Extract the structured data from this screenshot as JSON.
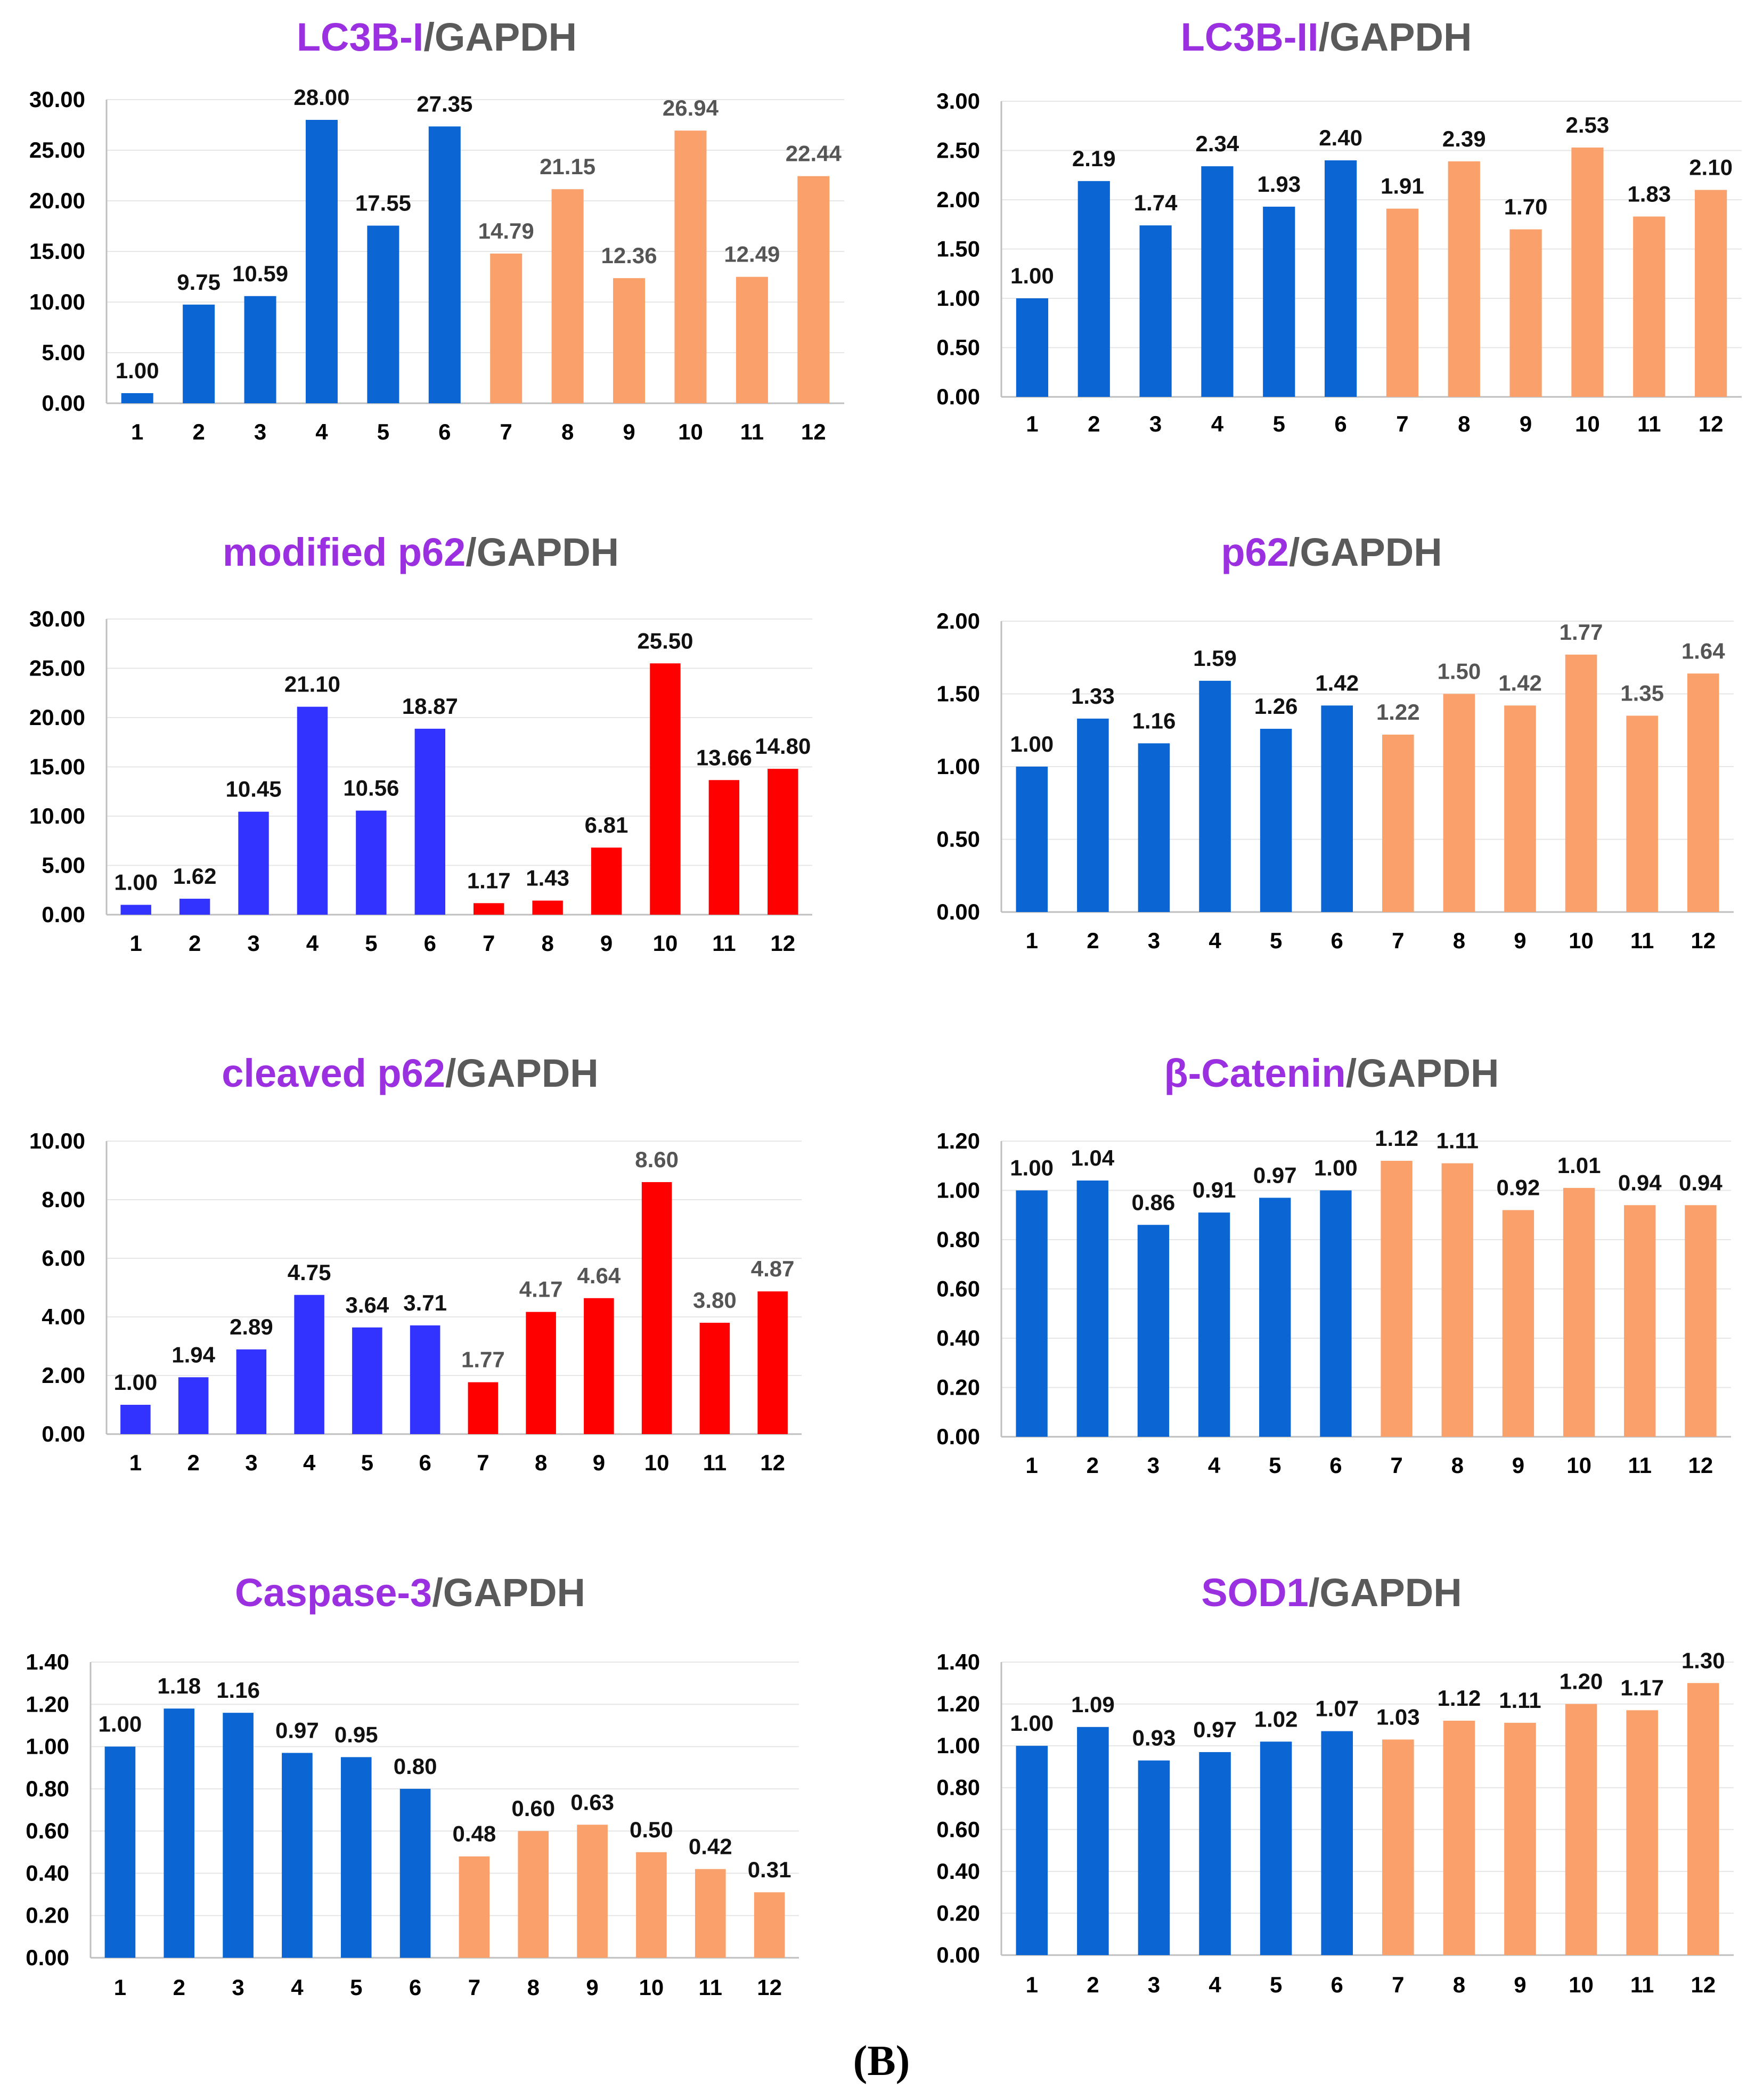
{
  "figure_label": "(B)",
  "colors": {
    "blue": "#0b66d4",
    "orange": "#f9a06b",
    "violet": "#3333ff",
    "red": "#ff0000",
    "title_protein": "#9b30e0",
    "title_ref": "#5a5a5a",
    "label_dark": "#111111",
    "label_grey": "#555555"
  },
  "chart_data": [
    {
      "type": "bar",
      "title_protein": "LC3B-I",
      "title_ref": "/GAPDH",
      "categories": [
        "1",
        "2",
        "3",
        "4",
        "5",
        "6",
        "7",
        "8",
        "9",
        "10",
        "11",
        "12"
      ],
      "values": [
        1.0,
        9.75,
        10.59,
        28.0,
        17.55,
        27.35,
        14.79,
        21.15,
        12.36,
        26.94,
        12.49,
        22.44
      ],
      "value_labels": [
        "1.00",
        "9.75",
        "10.59",
        "28.00",
        "17.55",
        "27.35",
        "14.79",
        "21.15",
        "12.36",
        "26.94",
        "12.49",
        "22.44"
      ],
      "bar_colors": [
        "blue",
        "blue",
        "blue",
        "blue",
        "blue",
        "blue",
        "orange",
        "orange",
        "orange",
        "orange",
        "orange",
        "orange"
      ],
      "ylim": [
        0,
        30
      ],
      "yticks": [
        "0.00",
        "5.00",
        "10.00",
        "15.00",
        "20.00",
        "25.00",
        "30.00"
      ],
      "grid": true
    },
    {
      "type": "bar",
      "title_protein": "LC3B-II",
      "title_ref": "/GAPDH",
      "categories": [
        "1",
        "2",
        "3",
        "4",
        "5",
        "6",
        "7",
        "8",
        "9",
        "10",
        "11",
        "12"
      ],
      "values": [
        1.0,
        2.19,
        1.74,
        2.34,
        1.93,
        2.4,
        1.91,
        2.39,
        1.7,
        2.53,
        1.83,
        2.1
      ],
      "value_labels": [
        "1.00",
        "2.19",
        "1.74",
        "2.34",
        "1.93",
        "2.40",
        "1.91",
        "2.39",
        "1.70",
        "2.53",
        "1.83",
        "2.10"
      ],
      "bar_colors": [
        "blue",
        "blue",
        "blue",
        "blue",
        "blue",
        "blue",
        "orange",
        "orange",
        "orange",
        "orange",
        "orange",
        "orange"
      ],
      "ylim": [
        0,
        3
      ],
      "yticks": [
        "0.00",
        "0.50",
        "1.00",
        "1.50",
        "2.00",
        "2.50",
        "3.00"
      ],
      "grid": true
    },
    {
      "type": "bar",
      "title_protein": "modified p62",
      "title_ref": "/GAPDH",
      "categories": [
        "1",
        "2",
        "3",
        "4",
        "5",
        "6",
        "7",
        "8",
        "9",
        "10",
        "11",
        "12"
      ],
      "values": [
        1.0,
        1.62,
        10.45,
        21.1,
        10.56,
        18.87,
        1.17,
        1.43,
        6.81,
        25.5,
        13.66,
        14.8
      ],
      "value_labels": [
        "1.00",
        "1.62",
        "10.45",
        "21.10",
        "10.56",
        "18.87",
        "1.17",
        "1.43",
        "6.81",
        "25.50",
        "13.66",
        "14.80"
      ],
      "bar_colors": [
        "violet",
        "violet",
        "violet",
        "violet",
        "violet",
        "violet",
        "red",
        "red",
        "red",
        "red",
        "red",
        "red"
      ],
      "ylim": [
        0,
        30
      ],
      "yticks": [
        "0.00",
        "5.00",
        "10.00",
        "15.00",
        "20.00",
        "25.00",
        "30.00"
      ],
      "grid": true
    },
    {
      "type": "bar",
      "title_protein": "p62",
      "title_ref": "/GAPDH",
      "categories": [
        "1",
        "2",
        "3",
        "4",
        "5",
        "6",
        "7",
        "8",
        "9",
        "10",
        "11",
        "12"
      ],
      "values": [
        1.0,
        1.33,
        1.16,
        1.59,
        1.26,
        1.42,
        1.22,
        1.5,
        1.42,
        1.77,
        1.35,
        1.64
      ],
      "value_labels": [
        "1.00",
        "1.33",
        "1.16",
        "1.59",
        "1.26",
        "1.42",
        "1.22",
        "1.50",
        "1.42",
        "1.77",
        "1.35",
        "1.64"
      ],
      "bar_colors": [
        "blue",
        "blue",
        "blue",
        "blue",
        "blue",
        "blue",
        "orange",
        "orange",
        "orange",
        "orange",
        "orange",
        "orange"
      ],
      "ylim": [
        0,
        2
      ],
      "yticks": [
        "0.00",
        "0.50",
        "1.00",
        "1.50",
        "2.00"
      ],
      "grid": true
    },
    {
      "type": "bar",
      "title_protein": "cleaved p62",
      "title_ref": "/GAPDH",
      "categories": [
        "1",
        "2",
        "3",
        "4",
        "5",
        "6",
        "7",
        "8",
        "9",
        "10",
        "11",
        "12"
      ],
      "values": [
        1.0,
        1.94,
        2.89,
        4.75,
        3.64,
        3.71,
        1.77,
        4.17,
        4.64,
        8.6,
        3.8,
        4.87
      ],
      "value_labels": [
        "1.00",
        "1.94",
        "2.89",
        "4.75",
        "3.64",
        "3.71",
        "1.77",
        "4.17",
        "4.64",
        "8.60",
        "3.80",
        "4.87"
      ],
      "bar_colors": [
        "violet",
        "violet",
        "violet",
        "violet",
        "violet",
        "violet",
        "red",
        "red",
        "red",
        "red",
        "red",
        "red"
      ],
      "ylim": [
        0,
        10
      ],
      "yticks": [
        "0.00",
        "2.00",
        "4.00",
        "6.00",
        "8.00",
        "10.00"
      ],
      "grid": true
    },
    {
      "type": "bar",
      "title_protein": "β-Catenin",
      "title_ref": "/GAPDH",
      "categories": [
        "1",
        "2",
        "3",
        "4",
        "5",
        "6",
        "7",
        "8",
        "9",
        "10",
        "11",
        "12"
      ],
      "values": [
        1.0,
        1.04,
        0.86,
        0.91,
        0.97,
        1.0,
        1.12,
        1.11,
        0.92,
        1.01,
        0.94,
        0.94
      ],
      "value_labels": [
        "1.00",
        "1.04",
        "0.86",
        "0.91",
        "0.97",
        "1.00",
        "1.12",
        "1.11",
        "0.92",
        "1.01",
        "0.94",
        "0.94"
      ],
      "bar_colors": [
        "blue",
        "blue",
        "blue",
        "blue",
        "blue",
        "blue",
        "orange",
        "orange",
        "orange",
        "orange",
        "orange",
        "orange"
      ],
      "ylim": [
        0,
        1.2
      ],
      "yticks": [
        "0.00",
        "0.20",
        "0.40",
        "0.60",
        "0.80",
        "1.00",
        "1.20"
      ],
      "grid": true
    },
    {
      "type": "bar",
      "title_protein": "Caspase-3",
      "title_ref": "/GAPDH",
      "categories": [
        "1",
        "2",
        "3",
        "4",
        "5",
        "6",
        "7",
        "8",
        "9",
        "10",
        "11",
        "12"
      ],
      "values": [
        1.0,
        1.18,
        1.16,
        0.97,
        0.95,
        0.8,
        0.48,
        0.6,
        0.63,
        0.5,
        0.42,
        0.31
      ],
      "value_labels": [
        "1.00",
        "1.18",
        "1.16",
        "0.97",
        "0.95",
        "0.80",
        "0.48",
        "0.60",
        "0.63",
        "0.50",
        "0.42",
        "0.31"
      ],
      "bar_colors": [
        "blue",
        "blue",
        "blue",
        "blue",
        "blue",
        "blue",
        "orange",
        "orange",
        "orange",
        "orange",
        "orange",
        "orange"
      ],
      "ylim": [
        0,
        1.4
      ],
      "yticks": [
        "0.00",
        "0.20",
        "0.40",
        "0.60",
        "0.80",
        "1.00",
        "1.20",
        "1.40"
      ],
      "grid": true
    },
    {
      "type": "bar",
      "title_protein": "SOD1",
      "title_ref": "/GAPDH",
      "categories": [
        "1",
        "2",
        "3",
        "4",
        "5",
        "6",
        "7",
        "8",
        "9",
        "10",
        "11",
        "12"
      ],
      "values": [
        1.0,
        1.09,
        0.93,
        0.97,
        1.02,
        1.07,
        1.03,
        1.12,
        1.11,
        1.2,
        1.17,
        1.3
      ],
      "value_labels": [
        "1.00",
        "1.09",
        "0.93",
        "0.97",
        "1.02",
        "1.07",
        "1.03",
        "1.12",
        "1.11",
        "1.20",
        "1.17",
        "1.30"
      ],
      "bar_colors": [
        "blue",
        "blue",
        "blue",
        "blue",
        "blue",
        "blue",
        "orange",
        "orange",
        "orange",
        "orange",
        "orange",
        "orange"
      ],
      "ylim": [
        0,
        1.4
      ],
      "yticks": [
        "0.00",
        "0.20",
        "0.40",
        "0.60",
        "0.80",
        "1.00",
        "1.20",
        "1.40"
      ],
      "grid": true
    }
  ]
}
